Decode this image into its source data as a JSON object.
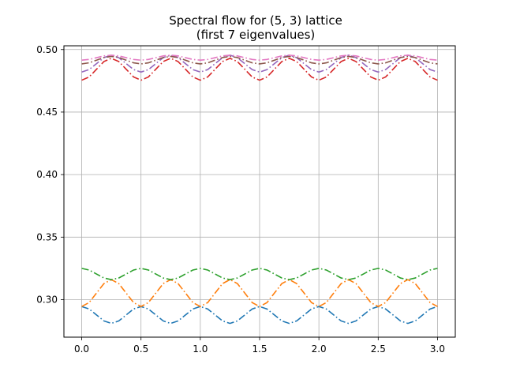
{
  "chart_data": {
    "type": "line",
    "title": "Spectral flow for (5, 3) lattice",
    "subtitle": "(first 7 eigenvalues)",
    "xlabel": "",
    "ylabel": "",
    "xlim": [
      -0.15,
      3.15
    ],
    "ylim": [
      0.27,
      0.503
    ],
    "grid": true,
    "legend": "none",
    "line_style": "dash-dot",
    "x_ticks": [
      {
        "value": 0.0,
        "label": "0.0"
      },
      {
        "value": 0.5,
        "label": "0.5"
      },
      {
        "value": 1.0,
        "label": "1.0"
      },
      {
        "value": 1.5,
        "label": "1.5"
      },
      {
        "value": 2.0,
        "label": "2.0"
      },
      {
        "value": 2.5,
        "label": "2.5"
      },
      {
        "value": 3.0,
        "label": "3.0"
      }
    ],
    "y_ticks": [
      {
        "value": 0.3,
        "label": "0.30"
      },
      {
        "value": 0.35,
        "label": "0.35"
      },
      {
        "value": 0.4,
        "label": "0.40"
      },
      {
        "value": 0.45,
        "label": "0.45"
      },
      {
        "value": 0.5,
        "label": "0.50"
      }
    ],
    "x_sample_step": 0.0625,
    "series": [
      {
        "color": "#1f77b4",
        "x": [
          0,
          0.25,
          0.5,
          0.75,
          1.0,
          1.25,
          1.5,
          1.75,
          2.0,
          2.25,
          2.5,
          2.75,
          3.0
        ],
        "values": [
          0.2945,
          0.281,
          0.2945,
          0.281,
          0.2945,
          0.281,
          0.2945,
          0.281,
          0.2945,
          0.281,
          0.2945,
          0.281,
          0.2945
        ]
      },
      {
        "color": "#ff7f0e",
        "x": [
          0,
          0.25,
          0.5,
          0.75,
          1.0,
          1.25,
          1.5,
          1.75,
          2.0,
          2.25,
          2.5,
          2.75,
          3.0
        ],
        "values": [
          0.2945,
          0.316,
          0.2945,
          0.316,
          0.2945,
          0.316,
          0.2945,
          0.316,
          0.2945,
          0.316,
          0.2945,
          0.316,
          0.2945
        ]
      },
      {
        "color": "#2ca02c",
        "x": [
          0,
          0.25,
          0.5,
          0.75,
          1.0,
          1.25,
          1.5,
          1.75,
          2.0,
          2.25,
          2.5,
          2.75,
          3.0
        ],
        "values": [
          0.325,
          0.316,
          0.325,
          0.316,
          0.325,
          0.316,
          0.325,
          0.316,
          0.325,
          0.316,
          0.325,
          0.316,
          0.325
        ]
      },
      {
        "color": "#d62728",
        "x": [
          0,
          0.25,
          0.5,
          0.75,
          1.0,
          1.25,
          1.5,
          1.75,
          2.0,
          2.25,
          2.5,
          2.75,
          3.0
        ],
        "values": [
          0.4755,
          0.493,
          0.4755,
          0.493,
          0.4755,
          0.493,
          0.4755,
          0.493,
          0.4755,
          0.493,
          0.4755,
          0.493,
          0.4755
        ]
      },
      {
        "color": "#9467bd",
        "x": [
          0,
          0.25,
          0.5,
          0.75,
          1.0,
          1.25,
          1.5,
          1.75,
          2.0,
          2.25,
          2.5,
          2.75,
          3.0
        ],
        "values": [
          0.482,
          0.4955,
          0.482,
          0.4955,
          0.482,
          0.4955,
          0.482,
          0.4955,
          0.482,
          0.4955,
          0.482,
          0.4955,
          0.482
        ]
      },
      {
        "color": "#8c564b",
        "x": [
          0,
          0.25,
          0.5,
          0.75,
          1.0,
          1.25,
          1.5,
          1.75,
          2.0,
          2.25,
          2.5,
          2.75,
          3.0
        ],
        "values": [
          0.4885,
          0.4945,
          0.4885,
          0.4945,
          0.4885,
          0.4945,
          0.4885,
          0.4945,
          0.4885,
          0.4945,
          0.4885,
          0.4945,
          0.4885
        ]
      },
      {
        "color": "#e377c2",
        "x": [
          0,
          0.25,
          0.5,
          0.75,
          1.0,
          1.25,
          1.5,
          1.75,
          2.0,
          2.25,
          2.5,
          2.75,
          3.0
        ],
        "values": [
          0.4915,
          0.4955,
          0.4915,
          0.4955,
          0.4915,
          0.4955,
          0.4915,
          0.4955,
          0.4915,
          0.4955,
          0.4915,
          0.4955,
          0.4915
        ]
      }
    ]
  }
}
